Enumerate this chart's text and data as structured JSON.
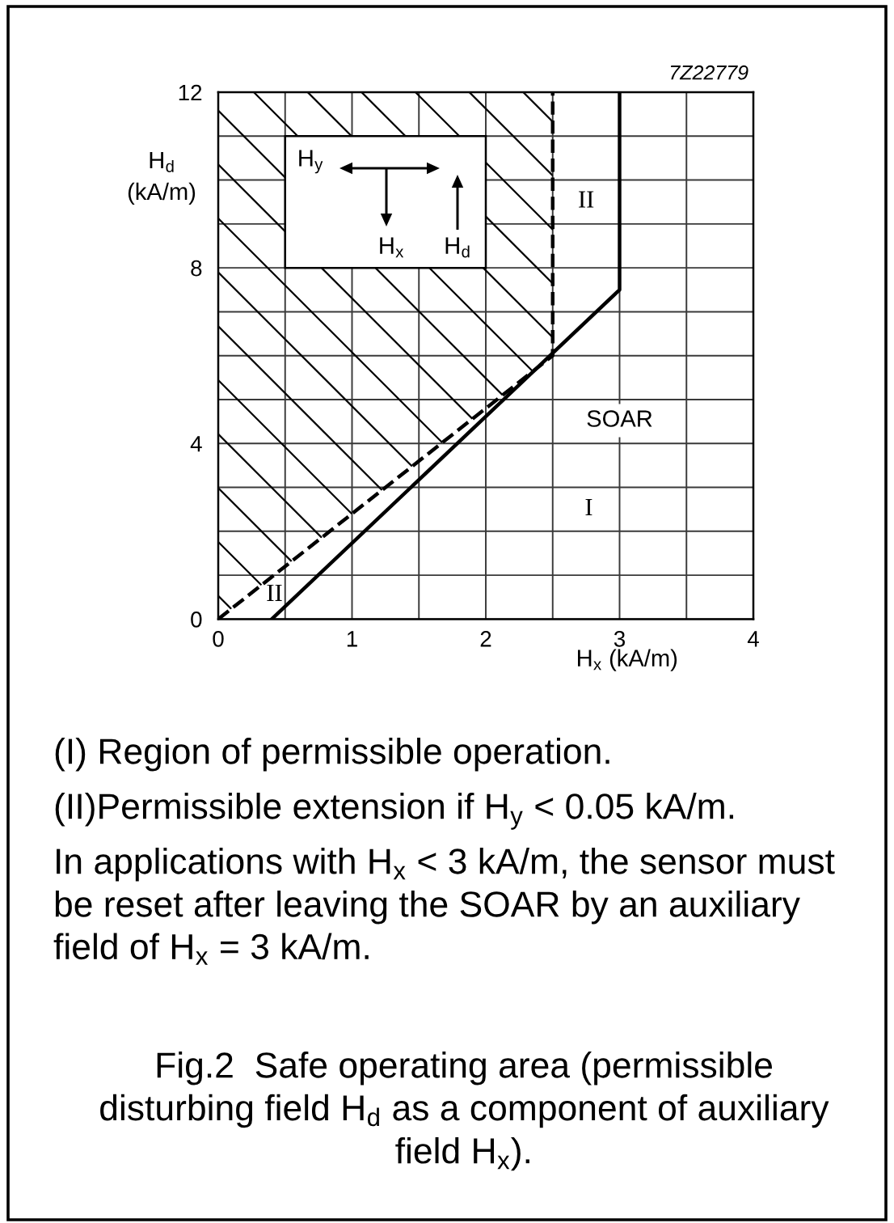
{
  "chart_data": {
    "type": "line",
    "title": "Fig.2  Safe operating area (permissible disturbing field H$_{d}$ as a component of auxiliary field H$_{x}$).",
    "xlabel": "H$_{x}$ (kA/m)",
    "ylabel": "H$_{d}$ (kA/m)",
    "xlim": [
      0,
      4
    ],
    "ylim": [
      0,
      12
    ],
    "xticks": [
      0,
      {
        "value": 0.5,
        "label": null
      },
      1,
      {
        "value": 1.5,
        "label": null
      },
      2,
      {
        "value": 2.5,
        "label": null
      },
      3,
      {
        "value": 3.5,
        "label": null
      },
      4
    ],
    "yticks": [
      0,
      {
        "value": 1,
        "label": null
      },
      {
        "value": 2,
        "label": null
      },
      {
        "value": 3,
        "label": null
      },
      4,
      {
        "value": 5,
        "label": null
      },
      {
        "value": 6,
        "label": null
      },
      {
        "value": 7,
        "label": null
      },
      8,
      {
        "value": 9,
        "label": null
      },
      {
        "value": 10,
        "label": null
      },
      {
        "value": 11,
        "label": null
      },
      12
    ],
    "grid": true,
    "series": [
      {
        "color": "#000000",
        "line_style": "solid",
        "x": [
          0.4,
          3,
          3
        ],
        "values": [
          0,
          7.5,
          12
        ]
      },
      {
        "color": "#000000",
        "line_style": "dashed",
        "x": [
          0,
          2.5,
          2.5
        ],
        "values": [
          0,
          6,
          12
        ],
        "lower": [
          0,
          6,
          12
        ],
        "upper": [
          12,
          12,
          12
        ]
      }
    ],
    "annotations": [
      "7Z22779",
      "H$_{y}$",
      "H$_{x}$",
      "H$_{d}$",
      "II",
      "I",
      "SOAR",
      "II",
      "(I) Region of permissible operation.",
      "(II)Permissible extension if H$_{y}$ < 0.05 kA/m.",
      "In applications with H$_{x}$ < 3 kA/m, the sensor must be reset after leaving the SOAR by an auxiliary field of H$_{x}$ = 3 kA/m."
    ]
  }
}
